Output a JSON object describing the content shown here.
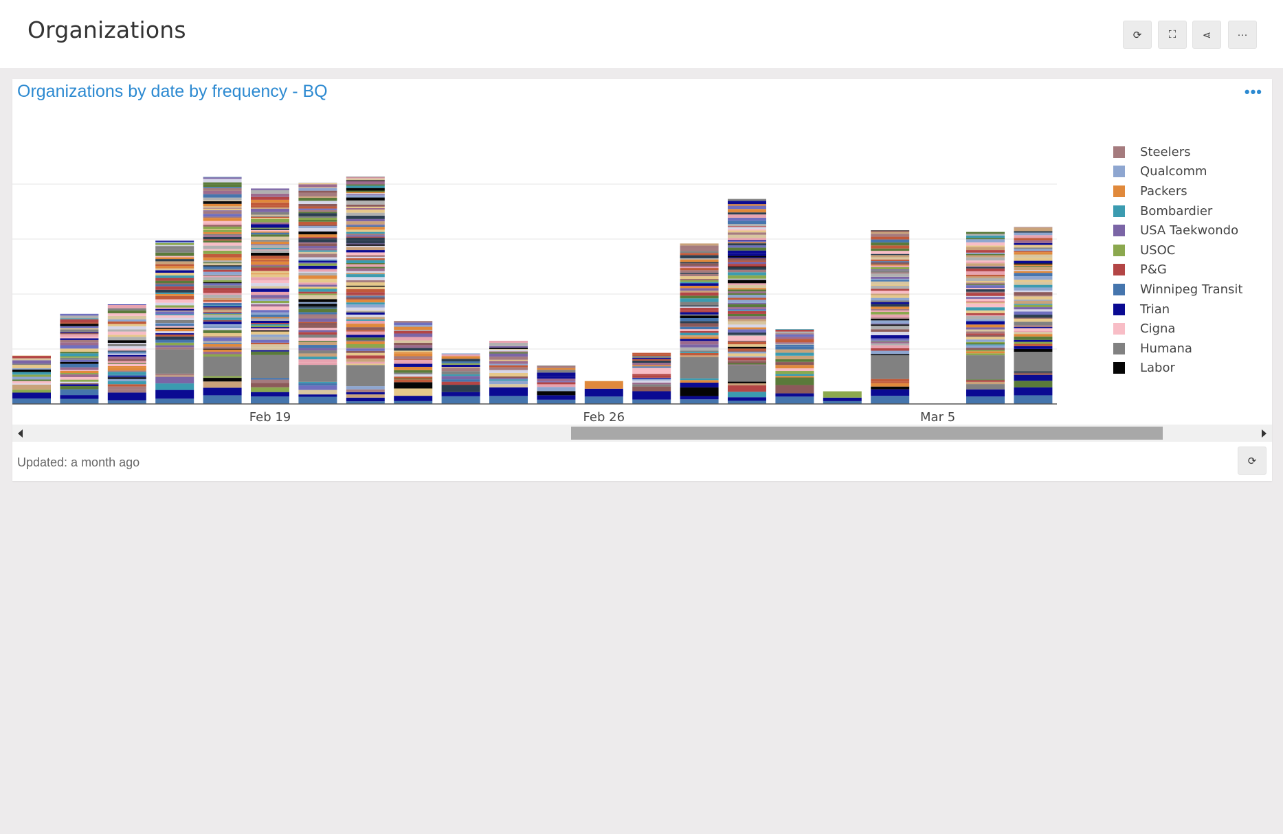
{
  "page": {
    "title": "Organizations"
  },
  "toolbar": [
    {
      "name": "refresh-button",
      "icon": "refresh-icon",
      "glyph": "⟳"
    },
    {
      "name": "fullscreen-button",
      "icon": "fullscreen-icon",
      "glyph": "⛶"
    },
    {
      "name": "share-button",
      "icon": "share-icon",
      "glyph": "⋖"
    },
    {
      "name": "more-button",
      "icon": "more-icon",
      "glyph": "···"
    }
  ],
  "widget": {
    "title": "Organizations by date by frequency - BQ",
    "menu_glyph": "•••",
    "updated_text": "Updated: a month ago",
    "footer_refresh_glyph": "⟳"
  },
  "chart_data": {
    "type": "bar",
    "stacked": true,
    "x_tick_labels": [
      "Feb 19",
      "Feb 26",
      "Mar 5"
    ],
    "grid": true,
    "legend_position": "right",
    "categories": [
      "Feb 14",
      "Feb 15",
      "Feb 16",
      "Feb 17",
      "Feb 18",
      "Feb 19",
      "Feb 20",
      "Feb 21",
      "Feb 22",
      "Feb 23",
      "Feb 24",
      "Feb 25",
      "Feb 26",
      "Feb 27",
      "Feb 28",
      "Mar 1",
      "Mar 2",
      "Mar 3",
      "Mar 4",
      "Mar 5",
      "Mar 6",
      "Mar 7"
    ],
    "totals": [
      88,
      164,
      181,
      297,
      413,
      392,
      403,
      413,
      151,
      92,
      115,
      70,
      42,
      93,
      292,
      373,
      136,
      23,
      316,
      0,
      313,
      322
    ],
    "series": [
      {
        "name": "Steelers",
        "color": "#a57b7e"
      },
      {
        "name": "Qualcomm",
        "color": "#8ea6d0"
      },
      {
        "name": "Packers",
        "color": "#e0893b"
      },
      {
        "name": "Bombardier",
        "color": "#3b9bb0"
      },
      {
        "name": "USA Taekwondo",
        "color": "#7b65a6"
      },
      {
        "name": "USOC",
        "color": "#8ba84e"
      },
      {
        "name": "P&G",
        "color": "#b34545"
      },
      {
        "name": "Winnipeg Transit",
        "color": "#4575ad"
      },
      {
        "name": "Trian",
        "color": "#0a0a92"
      },
      {
        "name": "Cigna",
        "color": "#f8bdc6"
      },
      {
        "name": "Humana",
        "color": "#818181"
      },
      {
        "name": "Labor",
        "color": "#050505"
      }
    ]
  }
}
